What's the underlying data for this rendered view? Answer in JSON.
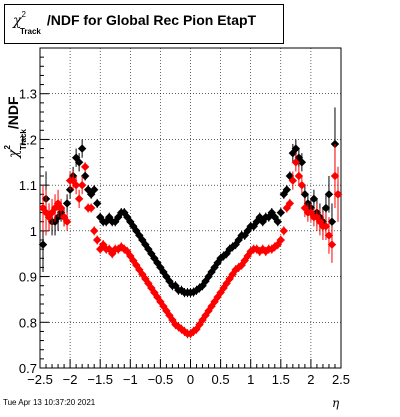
{
  "title": {
    "symbol": "χ",
    "sup": "2",
    "sub": "Track",
    "text": "/NDF for Global Rec Pion EtapT"
  },
  "ylabel": {
    "symbol": "χ",
    "sup": "2",
    "sub": "Track",
    "text": "/NDF"
  },
  "xlabel": "η",
  "footer": "Tue Apr 13 10:37:20 2021",
  "chart_data": {
    "type": "scatter",
    "xlim": [
      -2.5,
      2.5
    ],
    "ylim": [
      0.7,
      1.4
    ],
    "grid": true,
    "xticks": [
      -2.5,
      -2,
      -1.5,
      -1,
      -0.5,
      0,
      0.5,
      1,
      1.5,
      2,
      2.5
    ],
    "xtick_labels": [
      "−2.5",
      "−2",
      "−1.5",
      "−1",
      "−0.5",
      "0",
      "0.5",
      "1",
      "1.5",
      "2",
      "2.5"
    ],
    "yticks": [
      0.7,
      0.8,
      0.9,
      1.0,
      1.1,
      1.2,
      1.3
    ],
    "ytick_labels": [
      "0.7",
      "0.8",
      "0.9",
      "1",
      "1.1",
      "1.2",
      "1.3"
    ],
    "series": [
      {
        "color": "#000000",
        "marker": "diamond",
        "points": [
          [
            -2.45,
            0.97
          ],
          [
            -2.4,
            1.07
          ],
          [
            -2.35,
            1.03
          ],
          [
            -2.3,
            1.02
          ],
          [
            -2.25,
            1.02
          ],
          [
            -2.2,
            1.03
          ],
          [
            -2.15,
            1.04
          ],
          [
            -2.1,
            1.03
          ],
          [
            -2.05,
            1.06
          ],
          [
            -2.0,
            1.09
          ],
          [
            -1.95,
            1.12
          ],
          [
            -1.9,
            1.16
          ],
          [
            -1.85,
            1.15
          ],
          [
            -1.8,
            1.18
          ],
          [
            -1.75,
            1.12
          ],
          [
            -1.7,
            1.09
          ],
          [
            -1.65,
            1.08
          ],
          [
            -1.6,
            1.09
          ],
          [
            -1.55,
            1.06
          ],
          [
            -1.5,
            1.03
          ],
          [
            -1.45,
            1.02
          ],
          [
            -1.4,
            1.02
          ],
          [
            -1.35,
            1.03
          ],
          [
            -1.3,
            1.02
          ],
          [
            -1.25,
            1.02
          ],
          [
            -1.2,
            1.03
          ],
          [
            -1.15,
            1.04
          ],
          [
            -1.1,
            1.04
          ],
          [
            -1.05,
            1.03
          ],
          [
            -1.0,
            1.02
          ],
          [
            -0.95,
            1.01
          ],
          [
            -0.9,
            1.0
          ],
          [
            -0.85,
            0.99
          ],
          [
            -0.8,
            0.98
          ],
          [
            -0.75,
            0.97
          ],
          [
            -0.7,
            0.96
          ],
          [
            -0.65,
            0.95
          ],
          [
            -0.6,
            0.94
          ],
          [
            -0.55,
            0.93
          ],
          [
            -0.5,
            0.92
          ],
          [
            -0.45,
            0.91
          ],
          [
            -0.4,
            0.9
          ],
          [
            -0.35,
            0.89
          ],
          [
            -0.3,
            0.88
          ],
          [
            -0.25,
            0.88
          ],
          [
            -0.2,
            0.87
          ],
          [
            -0.15,
            0.87
          ],
          [
            -0.1,
            0.865
          ],
          [
            -0.05,
            0.865
          ],
          [
            0.0,
            0.865
          ],
          [
            0.05,
            0.866
          ],
          [
            0.1,
            0.87
          ],
          [
            0.15,
            0.875
          ],
          [
            0.2,
            0.88
          ],
          [
            0.25,
            0.89
          ],
          [
            0.3,
            0.9
          ],
          [
            0.35,
            0.91
          ],
          [
            0.4,
            0.92
          ],
          [
            0.45,
            0.93
          ],
          [
            0.5,
            0.94
          ],
          [
            0.55,
            0.945
          ],
          [
            0.6,
            0.95
          ],
          [
            0.65,
            0.96
          ],
          [
            0.7,
            0.965
          ],
          [
            0.75,
            0.97
          ],
          [
            0.8,
            0.98
          ],
          [
            0.85,
            0.99
          ],
          [
            0.9,
            0.99
          ],
          [
            0.95,
            1.0
          ],
          [
            1.0,
            1.01
          ],
          [
            1.05,
            1.01
          ],
          [
            1.1,
            1.02
          ],
          [
            1.15,
            1.03
          ],
          [
            1.2,
            1.02
          ],
          [
            1.25,
            1.03
          ],
          [
            1.3,
            1.03
          ],
          [
            1.35,
            1.04
          ],
          [
            1.4,
            1.03
          ],
          [
            1.45,
            1.02
          ],
          [
            1.5,
            1.04
          ],
          [
            1.55,
            1.08
          ],
          [
            1.6,
            1.09
          ],
          [
            1.65,
            1.12
          ],
          [
            1.7,
            1.17
          ],
          [
            1.75,
            1.18
          ],
          [
            1.8,
            1.16
          ],
          [
            1.85,
            1.15
          ],
          [
            1.9,
            1.08
          ],
          [
            1.95,
            1.06
          ],
          [
            2.0,
            1.05
          ],
          [
            2.05,
            1.07
          ],
          [
            2.1,
            1.04
          ],
          [
            2.15,
            1.03
          ],
          [
            2.2,
            1.02
          ],
          [
            2.25,
            1.05
          ],
          [
            2.3,
            1.08
          ],
          [
            2.35,
            1.02
          ],
          [
            2.4,
            1.19
          ],
          [
            2.45,
            1.08
          ]
        ],
        "err": [
          0.06,
          0.06,
          0.03,
          0.03,
          0.03,
          0.03,
          0.02,
          0.02,
          0.02,
          0.02,
          0.02,
          0.02,
          0.02,
          0.02,
          0.01,
          0.01,
          0.01,
          0.01,
          0.01,
          0.01,
          0.01,
          0.01,
          0.01,
          0.01,
          0.01,
          0.01,
          0.01,
          0.01,
          0.01,
          0.01,
          0.01,
          0.01,
          0.01,
          0.01,
          0.01,
          0.01,
          0.01,
          0.01,
          0.01,
          0.01,
          0.01,
          0.01,
          0.01,
          0.01,
          0.01,
          0.01,
          0.01,
          0.01,
          0.01,
          0.01,
          0.01,
          0.01,
          0.01,
          0.01,
          0.01,
          0.01,
          0.01,
          0.01,
          0.01,
          0.01,
          0.01,
          0.01,
          0.01,
          0.01,
          0.01,
          0.01,
          0.01,
          0.01,
          0.01,
          0.01,
          0.01,
          0.01,
          0.01,
          0.01,
          0.01,
          0.01,
          0.01,
          0.01,
          0.01,
          0.01,
          0.01,
          0.01,
          0.01,
          0.02,
          0.02,
          0.02,
          0.02,
          0.02,
          0.02,
          0.02,
          0.02,
          0.03,
          0.03,
          0.03,
          0.03,
          0.04,
          0.04,
          0.08,
          0.06
        ]
      },
      {
        "color": "#ff0000",
        "marker": "diamond",
        "points": [
          [
            -2.45,
            1.05
          ],
          [
            -2.4,
            1.04
          ],
          [
            -2.35,
            1.03
          ],
          [
            -2.3,
            1.04
          ],
          [
            -2.25,
            1.05
          ],
          [
            -2.2,
            1.06
          ],
          [
            -2.15,
            1.05
          ],
          [
            -2.1,
            1.03
          ],
          [
            -2.05,
            1.02
          ],
          [
            -2.0,
            1.11
          ],
          [
            -1.95,
            1.11
          ],
          [
            -1.9,
            1.1
          ],
          [
            -1.85,
            1.07
          ],
          [
            -1.8,
            1.1
          ],
          [
            -1.75,
            1.14
          ],
          [
            -1.7,
            1.05
          ],
          [
            -1.65,
            1.05
          ],
          [
            -1.6,
            1.0
          ],
          [
            -1.55,
            0.98
          ],
          [
            -1.5,
            0.96
          ],
          [
            -1.45,
            0.97
          ],
          [
            -1.4,
            0.96
          ],
          [
            -1.35,
            0.96
          ],
          [
            -1.3,
            0.95
          ],
          [
            -1.25,
            0.96
          ],
          [
            -1.2,
            0.96
          ],
          [
            -1.15,
            0.965
          ],
          [
            -1.1,
            0.96
          ],
          [
            -1.05,
            0.955
          ],
          [
            -1.0,
            0.945
          ],
          [
            -0.95,
            0.935
          ],
          [
            -0.9,
            0.925
          ],
          [
            -0.85,
            0.915
          ],
          [
            -0.8,
            0.905
          ],
          [
            -0.75,
            0.895
          ],
          [
            -0.7,
            0.885
          ],
          [
            -0.65,
            0.875
          ],
          [
            -0.6,
            0.865
          ],
          [
            -0.55,
            0.855
          ],
          [
            -0.5,
            0.845
          ],
          [
            -0.45,
            0.835
          ],
          [
            -0.4,
            0.825
          ],
          [
            -0.35,
            0.815
          ],
          [
            -0.3,
            0.805
          ],
          [
            -0.25,
            0.795
          ],
          [
            -0.2,
            0.79
          ],
          [
            -0.15,
            0.785
          ],
          [
            -0.1,
            0.78
          ],
          [
            -0.05,
            0.775
          ],
          [
            0.0,
            0.775
          ],
          [
            0.05,
            0.78
          ],
          [
            0.1,
            0.785
          ],
          [
            0.15,
            0.795
          ],
          [
            0.2,
            0.805
          ],
          [
            0.25,
            0.815
          ],
          [
            0.3,
            0.825
          ],
          [
            0.35,
            0.835
          ],
          [
            0.4,
            0.845
          ],
          [
            0.45,
            0.855
          ],
          [
            0.5,
            0.865
          ],
          [
            0.55,
            0.875
          ],
          [
            0.6,
            0.885
          ],
          [
            0.65,
            0.895
          ],
          [
            0.7,
            0.905
          ],
          [
            0.75,
            0.915
          ],
          [
            0.8,
            0.92
          ],
          [
            0.85,
            0.925
          ],
          [
            0.9,
            0.935
          ],
          [
            0.95,
            0.945
          ],
          [
            1.0,
            0.955
          ],
          [
            1.05,
            0.96
          ],
          [
            1.1,
            0.96
          ],
          [
            1.15,
            0.955
          ],
          [
            1.2,
            0.96
          ],
          [
            1.25,
            0.955
          ],
          [
            1.3,
            0.96
          ],
          [
            1.35,
            0.96
          ],
          [
            1.4,
            0.965
          ],
          [
            1.45,
            0.97
          ],
          [
            1.5,
            0.98
          ],
          [
            1.55,
            1.0
          ],
          [
            1.6,
            1.05
          ],
          [
            1.65,
            1.06
          ],
          [
            1.7,
            1.11
          ],
          [
            1.75,
            1.15
          ],
          [
            1.8,
            1.12
          ],
          [
            1.85,
            1.1
          ],
          [
            1.9,
            1.05
          ],
          [
            1.95,
            1.04
          ],
          [
            2.0,
            1.04
          ],
          [
            2.05,
            1.03
          ],
          [
            2.1,
            1.03
          ],
          [
            2.15,
            1.02
          ],
          [
            2.2,
            1.01
          ],
          [
            2.25,
            1.01
          ],
          [
            2.3,
            0.99
          ],
          [
            2.35,
            0.97
          ],
          [
            2.4,
            1.12
          ],
          [
            2.45,
            1.08
          ]
        ],
        "err": [
          0.05,
          0.05,
          0.03,
          0.03,
          0.03,
          0.03,
          0.02,
          0.02,
          0.02,
          0.02,
          0.02,
          0.02,
          0.02,
          0.02,
          0.01,
          0.01,
          0.01,
          0.01,
          0.01,
          0.01,
          0.01,
          0.01,
          0.01,
          0.01,
          0.01,
          0.01,
          0.01,
          0.01,
          0.01,
          0.01,
          0.01,
          0.01,
          0.01,
          0.01,
          0.01,
          0.01,
          0.01,
          0.01,
          0.01,
          0.01,
          0.01,
          0.01,
          0.01,
          0.01,
          0.01,
          0.01,
          0.01,
          0.01,
          0.01,
          0.01,
          0.01,
          0.01,
          0.01,
          0.01,
          0.01,
          0.01,
          0.01,
          0.01,
          0.01,
          0.01,
          0.01,
          0.01,
          0.01,
          0.01,
          0.01,
          0.01,
          0.01,
          0.01,
          0.01,
          0.01,
          0.01,
          0.01,
          0.01,
          0.01,
          0.01,
          0.01,
          0.01,
          0.01,
          0.01,
          0.01,
          0.01,
          0.01,
          0.01,
          0.02,
          0.02,
          0.02,
          0.02,
          0.02,
          0.02,
          0.02,
          0.02,
          0.03,
          0.03,
          0.03,
          0.03,
          0.04,
          0.04,
          0.07,
          0.06
        ]
      }
    ]
  }
}
